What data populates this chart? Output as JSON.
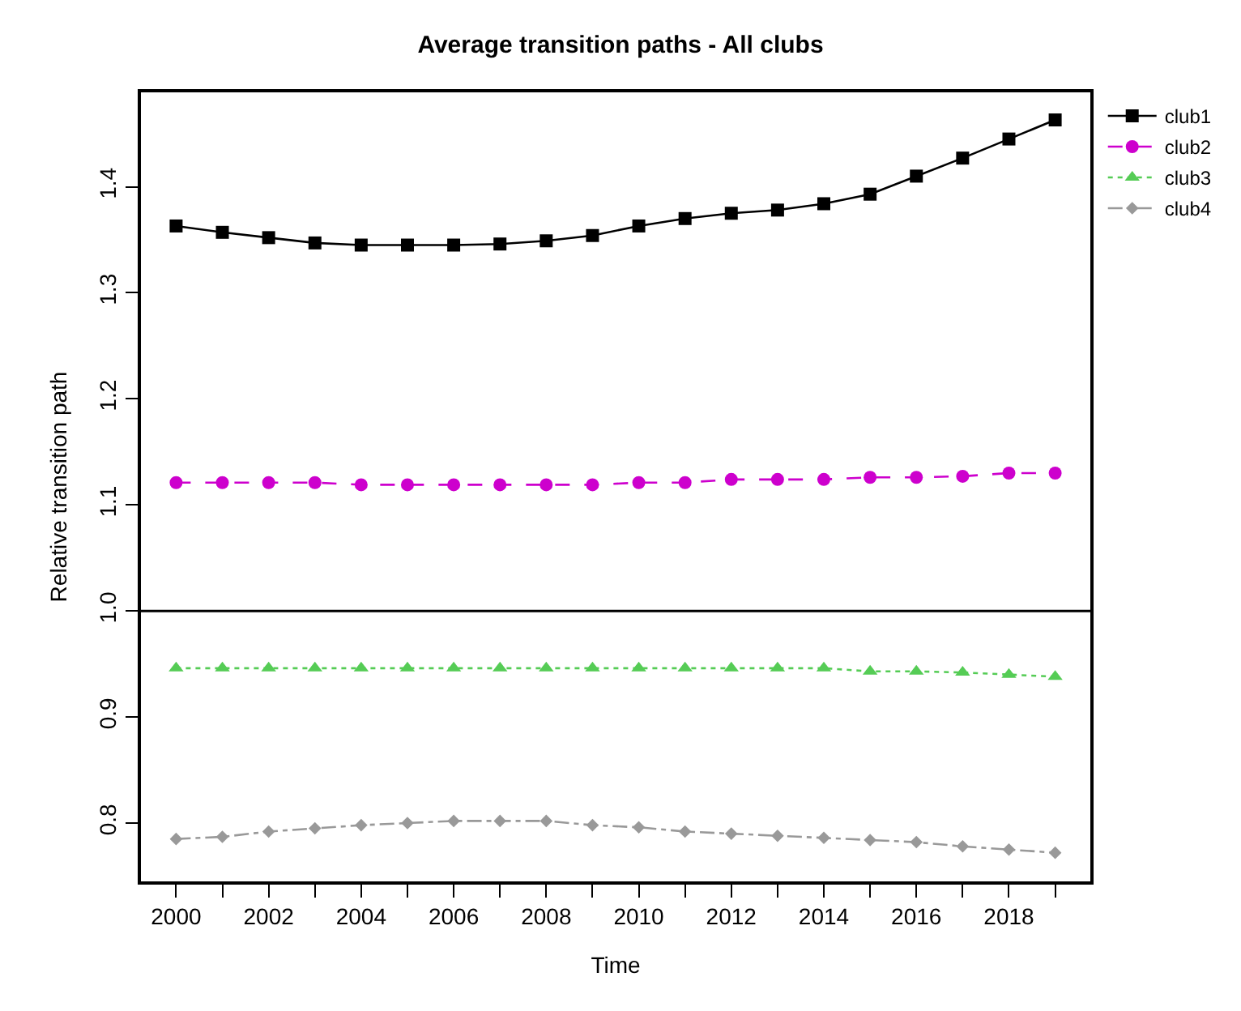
{
  "chart_data": {
    "type": "line",
    "title": "Average transition paths - All clubs",
    "xlabel": "Time",
    "ylabel": "Relative transition path",
    "x": [
      2000,
      2001,
      2002,
      2003,
      2004,
      2005,
      2006,
      2007,
      2008,
      2009,
      2010,
      2011,
      2012,
      2013,
      2014,
      2015,
      2016,
      2017,
      2018,
      2019
    ],
    "series": [
      {
        "name": "club1",
        "color": "#000000",
        "marker": "square",
        "line_style": "solid",
        "values": [
          1.363,
          1.357,
          1.352,
          1.347,
          1.345,
          1.345,
          1.345,
          1.346,
          1.349,
          1.354,
          1.363,
          1.37,
          1.375,
          1.378,
          1.384,
          1.393,
          1.41,
          1.427,
          1.445,
          1.463
        ]
      },
      {
        "name": "club2",
        "color": "#cd00cd",
        "marker": "circle",
        "line_style": "dashed",
        "values": [
          1.121,
          1.121,
          1.121,
          1.121,
          1.119,
          1.119,
          1.119,
          1.119,
          1.119,
          1.119,
          1.121,
          1.121,
          1.124,
          1.124,
          1.124,
          1.126,
          1.126,
          1.127,
          1.13,
          1.13
        ]
      },
      {
        "name": "club3",
        "color": "#55cc55",
        "marker": "triangle",
        "line_style": "dotted",
        "values": [
          0.946,
          0.946,
          0.946,
          0.946,
          0.946,
          0.946,
          0.946,
          0.946,
          0.946,
          0.946,
          0.946,
          0.946,
          0.946,
          0.946,
          0.946,
          0.943,
          0.943,
          0.942,
          0.94,
          0.938
        ]
      },
      {
        "name": "club4",
        "color": "#999999",
        "marker": "diamond",
        "line_style": "dashdot",
        "values": [
          0.785,
          0.787,
          0.792,
          0.795,
          0.798,
          0.8,
          0.802,
          0.802,
          0.802,
          0.798,
          0.796,
          0.792,
          0.79,
          0.788,
          0.786,
          0.784,
          0.782,
          0.778,
          0.775,
          0.772
        ]
      }
    ],
    "xlim": [
      1999.24,
      2019.76
    ],
    "xticks": [
      2000,
      {
        "value": 2001,
        "label": null
      },
      2002,
      {
        "value": 2003,
        "label": null
      },
      2004,
      {
        "value": 2005,
        "label": null
      },
      2006,
      {
        "value": 2007,
        "label": null
      },
      2008,
      {
        "value": 2009,
        "label": null
      },
      2010,
      {
        "value": 2011,
        "label": null
      },
      2012,
      {
        "value": 2013,
        "label": null
      },
      2014,
      {
        "value": 2015,
        "label": null
      },
      2016,
      {
        "value": 2017,
        "label": null
      },
      2018,
      {
        "value": 2019,
        "label": null
      }
    ],
    "ylim": [
      0.745,
      1.489
    ],
    "yticks": [
      0.8,
      0.9,
      {
        "value": 1,
        "label": "1.0"
      },
      1.1,
      1.2,
      1.3,
      1.4
    ],
    "ref_lines": [
      {
        "axis": "y",
        "value": 1,
        "color": "#000000",
        "line_style": "solid"
      }
    ],
    "grid": false,
    "legend": "top right"
  }
}
